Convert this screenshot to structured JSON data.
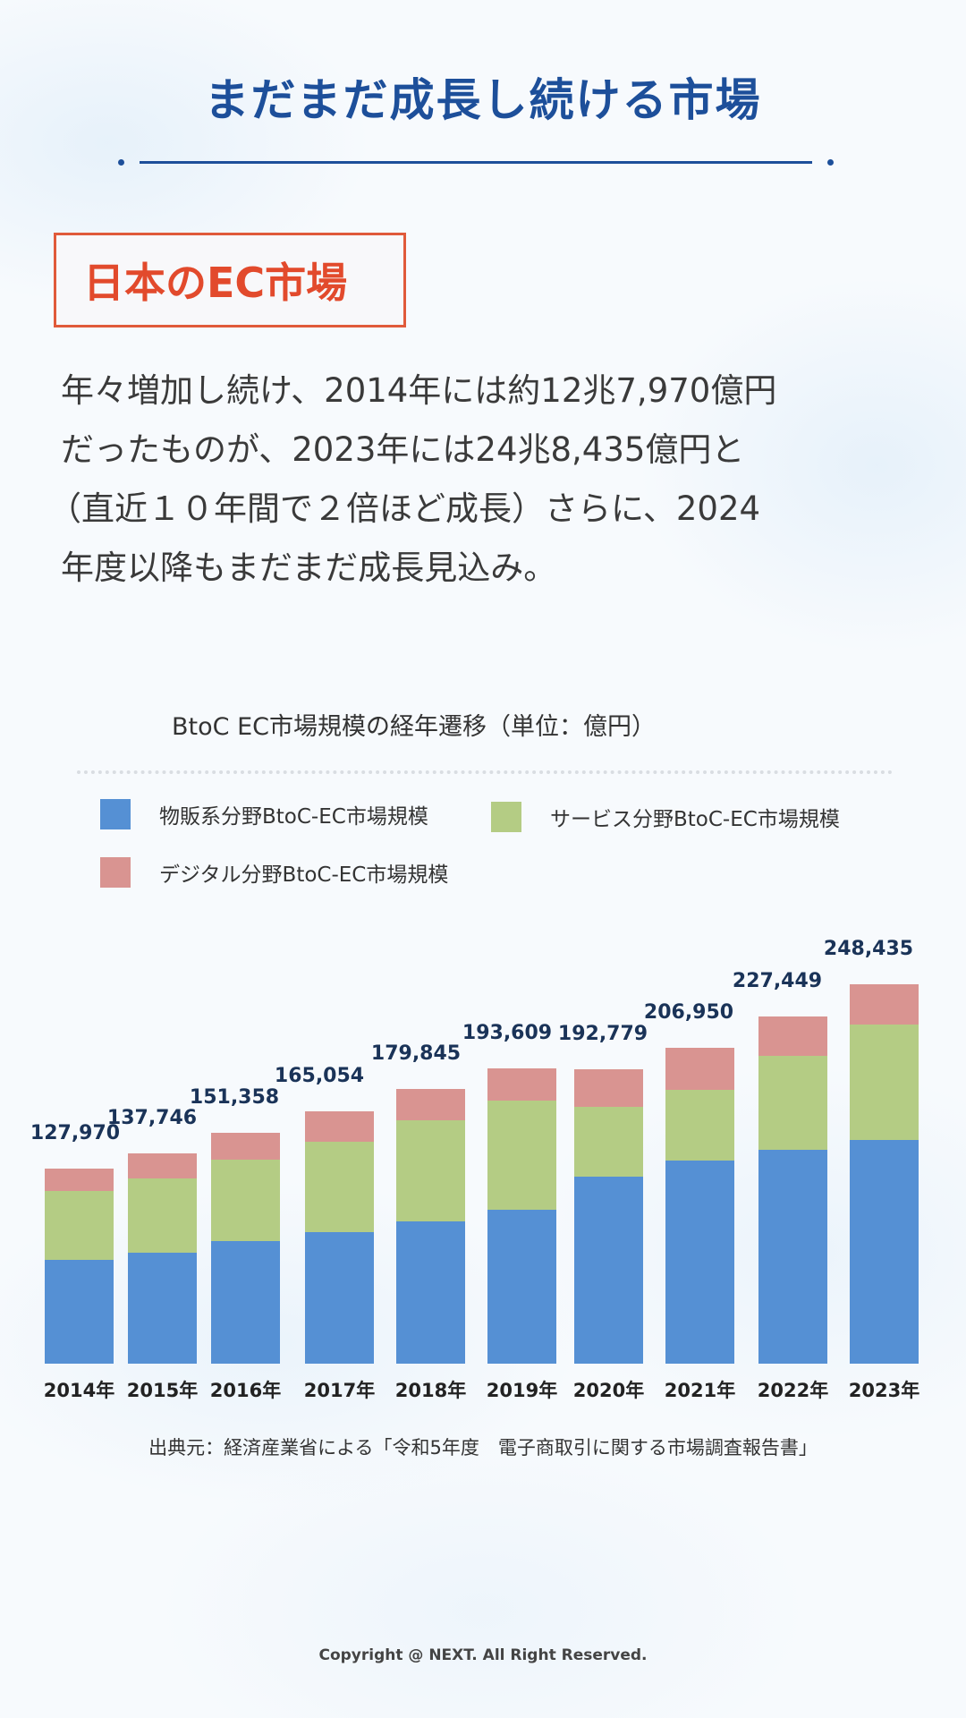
{
  "header": {
    "title": "まだまだ成長し続ける市場"
  },
  "section": {
    "label": "日本のEC市場"
  },
  "body": {
    "lines": [
      "年々増加し続け、2014年には約12兆7,970億円",
      "だったものが、2023年には24兆8,435億円と",
      "（直近１０年間で２倍ほど成長）さらに、2024",
      "年度以降もまだまだ成長見込み。"
    ]
  },
  "colors": {
    "title_blue": "#1d4f9a",
    "accent_red": "#e24a2c",
    "goods": "#5590d4",
    "services": "#b4cc84",
    "digital": "#d99491",
    "value_label": "#1a3358"
  },
  "legend": [
    {
      "label": "物販系分野BtoC-EC市場規模",
      "color": "#5590d4"
    },
    {
      "label": "サービス分野BtoC-EC市場規模",
      "color": "#b4cc84"
    },
    {
      "label": "デジタル分野BtoC-EC市場規模",
      "color": "#d99491"
    }
  ],
  "chart_data": {
    "type": "bar",
    "stacked": true,
    "title": "BtoC EC市場規模の経年遷移（単位：億円）",
    "xlabel": "",
    "ylabel": "億円",
    "categories": [
      "2014年",
      "2015年",
      "2016年",
      "2017年",
      "2018年",
      "2019年",
      "2020年",
      "2021年",
      "2022年",
      "2023年"
    ],
    "series": [
      {
        "name": "物販系分野BtoC-EC市場規模",
        "color": "#5590d4",
        "values": [
          68043,
          72398,
          80043,
          86008,
          92992,
          100515,
          122333,
          132865,
          139997,
          146760
        ]
      },
      {
        "name": "サービス分野BtoC-EC市場規模",
        "color": "#b4cc84",
        "values": [
          44816,
          49014,
          53532,
          59568,
          66471,
          71672,
          45832,
          46424,
          61477,
          75169
        ]
      },
      {
        "name": "デジタル分野BtoC-EC市場規模",
        "color": "#d99491",
        "values": [
          15111,
          16334,
          17782,
          19478,
          20382,
          21422,
          24614,
          27661,
          25974,
          26506
        ]
      }
    ],
    "totals": [
      127970,
      137746,
      151358,
      165054,
      179845,
      193609,
      192779,
      206950,
      227449,
      248435
    ],
    "total_labels": [
      "127,970",
      "137,746",
      "151,358",
      "165,054",
      "179,845",
      "193,609",
      "192,779",
      "206,950",
      "227,449",
      "248,435"
    ],
    "ylim": [
      0,
      250000
    ],
    "grid": false,
    "legend_position": "top",
    "source": "出典元：経済産業省による「令和5年度　電子商取引に関する市場調査報告書」"
  },
  "footer": {
    "copyright": "Copyright @ NEXT. All Right Reserved."
  }
}
